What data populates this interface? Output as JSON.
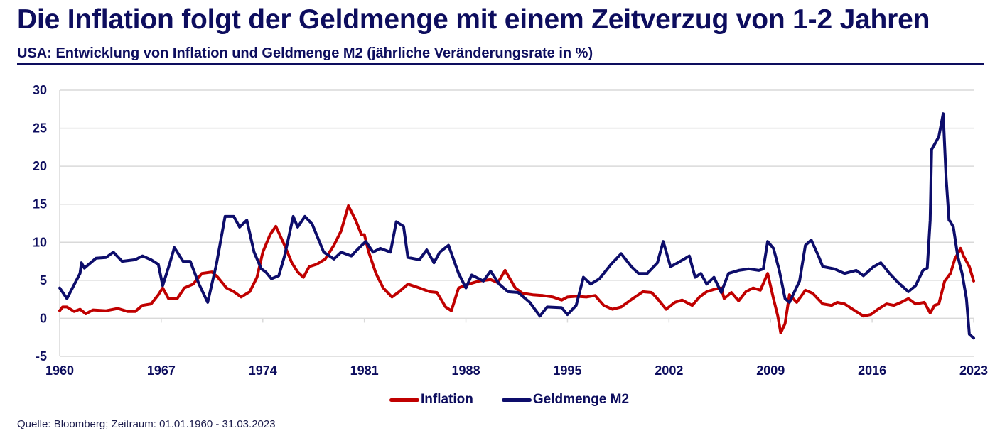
{
  "header": {
    "title": "Die Inflation folgt der Geldmenge mit einem Zeitverzug von 1-2 Jahren",
    "subtitle": "USA: Entwicklung von Inflation und Geldmenge M2 (jährliche Veränderungsrate in %)"
  },
  "footer": {
    "source": "Quelle: Bloomberg; Zeitraum: 01.01.1960 - 31.03.2023"
  },
  "colors": {
    "inflation": "#c00000",
    "m2": "#0d0d6b",
    "grid": "#d9d9d9",
    "text": "#0d0d5e"
  },
  "chart_data": {
    "type": "line",
    "title": "Die Inflation folgt der Geldmenge mit einem Zeitverzug von 1-2 Jahren",
    "subtitle": "USA: Entwicklung von Inflation und Geldmenge M2 (jährliche Veränderungsrate in %)",
    "xlabel": "",
    "ylabel": "",
    "xlim": [
      1960,
      2023
    ],
    "ylim": [
      -5,
      30
    ],
    "x_ticks": [
      1960,
      1967,
      1974,
      1981,
      1988,
      1995,
      2002,
      2009,
      2016,
      2023
    ],
    "x_tick_labels": [
      "1960",
      "1967",
      "1974",
      "1981",
      "1988",
      "1995",
      "2002",
      "2009",
      "2016",
      "2023"
    ],
    "y_ticks": [
      -5,
      0,
      5,
      10,
      15,
      20,
      25,
      30
    ],
    "y_tick_labels": [
      "-5",
      "0",
      "5",
      "10",
      "15",
      "20",
      "25",
      "30"
    ],
    "x_axis_at": 0,
    "grid": true,
    "legend_position": "bottom-center",
    "series": [
      {
        "name": "Inflation",
        "color": "#c00000",
        "points": [
          [
            1960.0,
            1.0
          ],
          [
            1960.2,
            1.5
          ],
          [
            1960.5,
            1.5
          ],
          [
            1961.0,
            0.9
          ],
          [
            1961.4,
            1.2
          ],
          [
            1961.8,
            0.6
          ],
          [
            1962.3,
            1.1
          ],
          [
            1963.2,
            1.0
          ],
          [
            1964.0,
            1.3
          ],
          [
            1964.7,
            0.9
          ],
          [
            1965.2,
            0.9
          ],
          [
            1965.7,
            1.7
          ],
          [
            1966.3,
            1.9
          ],
          [
            1966.8,
            3.1
          ],
          [
            1967.1,
            4.0
          ],
          [
            1967.5,
            2.6
          ],
          [
            1968.1,
            2.6
          ],
          [
            1968.6,
            4.0
          ],
          [
            1969.2,
            4.5
          ],
          [
            1969.8,
            5.9
          ],
          [
            1970.5,
            6.1
          ],
          [
            1970.9,
            5.4
          ],
          [
            1971.5,
            4.0
          ],
          [
            1972.0,
            3.5
          ],
          [
            1972.5,
            2.8
          ],
          [
            1973.1,
            3.5
          ],
          [
            1973.6,
            5.4
          ],
          [
            1974.0,
            8.7
          ],
          [
            1974.5,
            11.0
          ],
          [
            1974.9,
            12.1
          ],
          [
            1975.5,
            9.6
          ],
          [
            1976.0,
            7.3
          ],
          [
            1976.4,
            6.1
          ],
          [
            1976.8,
            5.4
          ],
          [
            1977.2,
            6.8
          ],
          [
            1977.7,
            7.1
          ],
          [
            1978.3,
            7.8
          ],
          [
            1978.9,
            9.6
          ],
          [
            1979.4,
            11.5
          ],
          [
            1979.9,
            14.8
          ],
          [
            1980.4,
            12.9
          ],
          [
            1980.8,
            11.0
          ],
          [
            1981.0,
            11.0
          ],
          [
            1981.3,
            8.7
          ],
          [
            1981.8,
            5.9
          ],
          [
            1982.3,
            4.0
          ],
          [
            1982.9,
            2.8
          ],
          [
            1983.4,
            3.5
          ],
          [
            1984.0,
            4.5
          ],
          [
            1984.8,
            4.0
          ],
          [
            1985.5,
            3.5
          ],
          [
            1986.0,
            3.4
          ],
          [
            1986.6,
            1.5
          ],
          [
            1987.0,
            1.0
          ],
          [
            1987.5,
            4.0
          ],
          [
            1988.2,
            4.5
          ],
          [
            1988.9,
            4.9
          ],
          [
            1989.7,
            5.1
          ],
          [
            1990.2,
            4.7
          ],
          [
            1990.7,
            6.3
          ],
          [
            1991.4,
            4.0
          ],
          [
            1991.9,
            3.3
          ],
          [
            1992.6,
            3.1
          ],
          [
            1993.3,
            3.0
          ],
          [
            1994.0,
            2.8
          ],
          [
            1994.6,
            2.4
          ],
          [
            1995.0,
            2.8
          ],
          [
            1995.6,
            2.9
          ],
          [
            1996.3,
            2.8
          ],
          [
            1996.9,
            3.0
          ],
          [
            1997.5,
            1.7
          ],
          [
            1998.1,
            1.2
          ],
          [
            1998.7,
            1.5
          ],
          [
            1999.5,
            2.6
          ],
          [
            2000.2,
            3.5
          ],
          [
            2000.8,
            3.4
          ],
          [
            2001.2,
            2.6
          ],
          [
            2001.8,
            1.2
          ],
          [
            2002.4,
            2.1
          ],
          [
            2002.9,
            2.4
          ],
          [
            2003.6,
            1.7
          ],
          [
            2004.1,
            2.8
          ],
          [
            2004.6,
            3.5
          ],
          [
            2005.1,
            3.8
          ],
          [
            2005.6,
            4.0
          ],
          [
            2005.8,
            2.6
          ],
          [
            2006.3,
            3.4
          ],
          [
            2006.8,
            2.3
          ],
          [
            2007.3,
            3.5
          ],
          [
            2007.8,
            4.0
          ],
          [
            2008.3,
            3.7
          ],
          [
            2008.8,
            5.9
          ],
          [
            2009.2,
            2.6
          ],
          [
            2009.5,
            0.3
          ],
          [
            2009.7,
            -1.9
          ],
          [
            2010.0,
            -0.7
          ],
          [
            2010.3,
            3.1
          ],
          [
            2010.8,
            2.1
          ],
          [
            2011.4,
            3.7
          ],
          [
            2011.9,
            3.3
          ],
          [
            2012.6,
            1.9
          ],
          [
            2013.2,
            1.7
          ],
          [
            2013.6,
            2.1
          ],
          [
            2014.1,
            1.9
          ],
          [
            2014.9,
            0.9
          ],
          [
            2015.4,
            0.3
          ],
          [
            2015.9,
            0.5
          ],
          [
            2016.4,
            1.2
          ],
          [
            2017.0,
            1.9
          ],
          [
            2017.5,
            1.7
          ],
          [
            2018.0,
            2.1
          ],
          [
            2018.5,
            2.6
          ],
          [
            2019.0,
            1.9
          ],
          [
            2019.6,
            2.1
          ],
          [
            2020.0,
            0.7
          ],
          [
            2020.3,
            1.7
          ],
          [
            2020.6,
            1.9
          ],
          [
            2021.0,
            4.9
          ],
          [
            2021.4,
            5.9
          ],
          [
            2021.7,
            7.8
          ],
          [
            2022.1,
            9.2
          ],
          [
            2022.3,
            8.2
          ],
          [
            2022.7,
            6.8
          ],
          [
            2023.0,
            4.9
          ]
        ]
      },
      {
        "name": "Geldmenge M2",
        "color": "#0d0d6b",
        "points": [
          [
            1960.0,
            4.0
          ],
          [
            1960.5,
            2.6
          ],
          [
            1961.4,
            5.9
          ],
          [
            1961.5,
            7.3
          ],
          [
            1961.7,
            6.6
          ],
          [
            1962.5,
            7.9
          ],
          [
            1963.2,
            8.0
          ],
          [
            1963.7,
            8.7
          ],
          [
            1964.3,
            7.5
          ],
          [
            1965.2,
            7.7
          ],
          [
            1965.7,
            8.2
          ],
          [
            1966.3,
            7.7
          ],
          [
            1966.8,
            7.1
          ],
          [
            1967.1,
            4.3
          ],
          [
            1967.6,
            7.3
          ],
          [
            1967.9,
            9.3
          ],
          [
            1968.5,
            7.5
          ],
          [
            1969.0,
            7.5
          ],
          [
            1969.6,
            4.5
          ],
          [
            1970.2,
            2.1
          ],
          [
            1970.8,
            7.1
          ],
          [
            1971.4,
            13.4
          ],
          [
            1972.0,
            13.4
          ],
          [
            1972.4,
            12.0
          ],
          [
            1972.9,
            12.9
          ],
          [
            1973.4,
            8.7
          ],
          [
            1973.9,
            6.5
          ],
          [
            1974.2,
            6.1
          ],
          [
            1974.6,
            5.2
          ],
          [
            1975.1,
            5.6
          ],
          [
            1975.5,
            8.2
          ],
          [
            1976.1,
            13.4
          ],
          [
            1976.4,
            12.0
          ],
          [
            1976.9,
            13.4
          ],
          [
            1977.4,
            12.4
          ],
          [
            1978.2,
            8.7
          ],
          [
            1978.9,
            7.8
          ],
          [
            1979.4,
            8.7
          ],
          [
            1980.1,
            8.2
          ],
          [
            1980.6,
            9.2
          ],
          [
            1981.1,
            10.1
          ],
          [
            1981.6,
            8.7
          ],
          [
            1982.1,
            9.2
          ],
          [
            1982.8,
            8.7
          ],
          [
            1983.2,
            12.7
          ],
          [
            1983.7,
            12.1
          ],
          [
            1984.0,
            8.0
          ],
          [
            1984.8,
            7.7
          ],
          [
            1985.3,
            9.0
          ],
          [
            1985.8,
            7.3
          ],
          [
            1986.2,
            8.7
          ],
          [
            1986.8,
            9.6
          ],
          [
            1987.5,
            5.9
          ],
          [
            1988.0,
            4.0
          ],
          [
            1988.4,
            5.7
          ],
          [
            1989.2,
            4.9
          ],
          [
            1989.7,
            6.2
          ],
          [
            1990.3,
            4.5
          ],
          [
            1990.9,
            3.5
          ],
          [
            1991.6,
            3.4
          ],
          [
            1992.4,
            2.1
          ],
          [
            1993.1,
            0.3
          ],
          [
            1993.6,
            1.5
          ],
          [
            1994.6,
            1.4
          ],
          [
            1995.0,
            0.5
          ],
          [
            1995.6,
            1.7
          ],
          [
            1996.1,
            5.4
          ],
          [
            1996.6,
            4.5
          ],
          [
            1997.2,
            5.2
          ],
          [
            1998.0,
            7.1
          ],
          [
            1998.7,
            8.5
          ],
          [
            1999.4,
            6.8
          ],
          [
            1999.9,
            5.9
          ],
          [
            2000.5,
            5.9
          ],
          [
            2001.2,
            7.3
          ],
          [
            2001.6,
            10.1
          ],
          [
            2002.1,
            6.8
          ],
          [
            2002.6,
            7.3
          ],
          [
            2003.4,
            8.2
          ],
          [
            2003.8,
            5.4
          ],
          [
            2004.2,
            5.9
          ],
          [
            2004.6,
            4.5
          ],
          [
            2005.1,
            5.4
          ],
          [
            2005.6,
            3.4
          ],
          [
            2006.1,
            5.9
          ],
          [
            2006.8,
            6.3
          ],
          [
            2007.5,
            6.5
          ],
          [
            2008.2,
            6.3
          ],
          [
            2008.5,
            6.5
          ],
          [
            2008.8,
            10.1
          ],
          [
            2009.2,
            9.2
          ],
          [
            2009.6,
            6.3
          ],
          [
            2010.0,
            2.6
          ],
          [
            2010.3,
            2.1
          ],
          [
            2011.0,
            4.9
          ],
          [
            2011.4,
            9.6
          ],
          [
            2011.8,
            10.3
          ],
          [
            2012.3,
            8.2
          ],
          [
            2012.6,
            6.8
          ],
          [
            2013.4,
            6.5
          ],
          [
            2014.1,
            5.9
          ],
          [
            2014.9,
            6.3
          ],
          [
            2015.4,
            5.6
          ],
          [
            2016.1,
            6.8
          ],
          [
            2016.6,
            7.3
          ],
          [
            2017.2,
            5.9
          ],
          [
            2017.8,
            4.7
          ],
          [
            2018.5,
            3.5
          ],
          [
            2019.0,
            4.3
          ],
          [
            2019.5,
            6.3
          ],
          [
            2019.8,
            6.6
          ],
          [
            2020.0,
            12.9
          ],
          [
            2020.1,
            22.2
          ],
          [
            2020.4,
            23.2
          ],
          [
            2020.6,
            23.9
          ],
          [
            2020.9,
            26.9
          ],
          [
            2021.1,
            18.5
          ],
          [
            2021.3,
            12.9
          ],
          [
            2021.4,
            12.7
          ],
          [
            2021.6,
            12.0
          ],
          [
            2021.9,
            8.2
          ],
          [
            2022.2,
            5.9
          ],
          [
            2022.5,
            2.6
          ],
          [
            2022.7,
            -2.1
          ],
          [
            2023.0,
            -2.6
          ]
        ]
      }
    ]
  }
}
